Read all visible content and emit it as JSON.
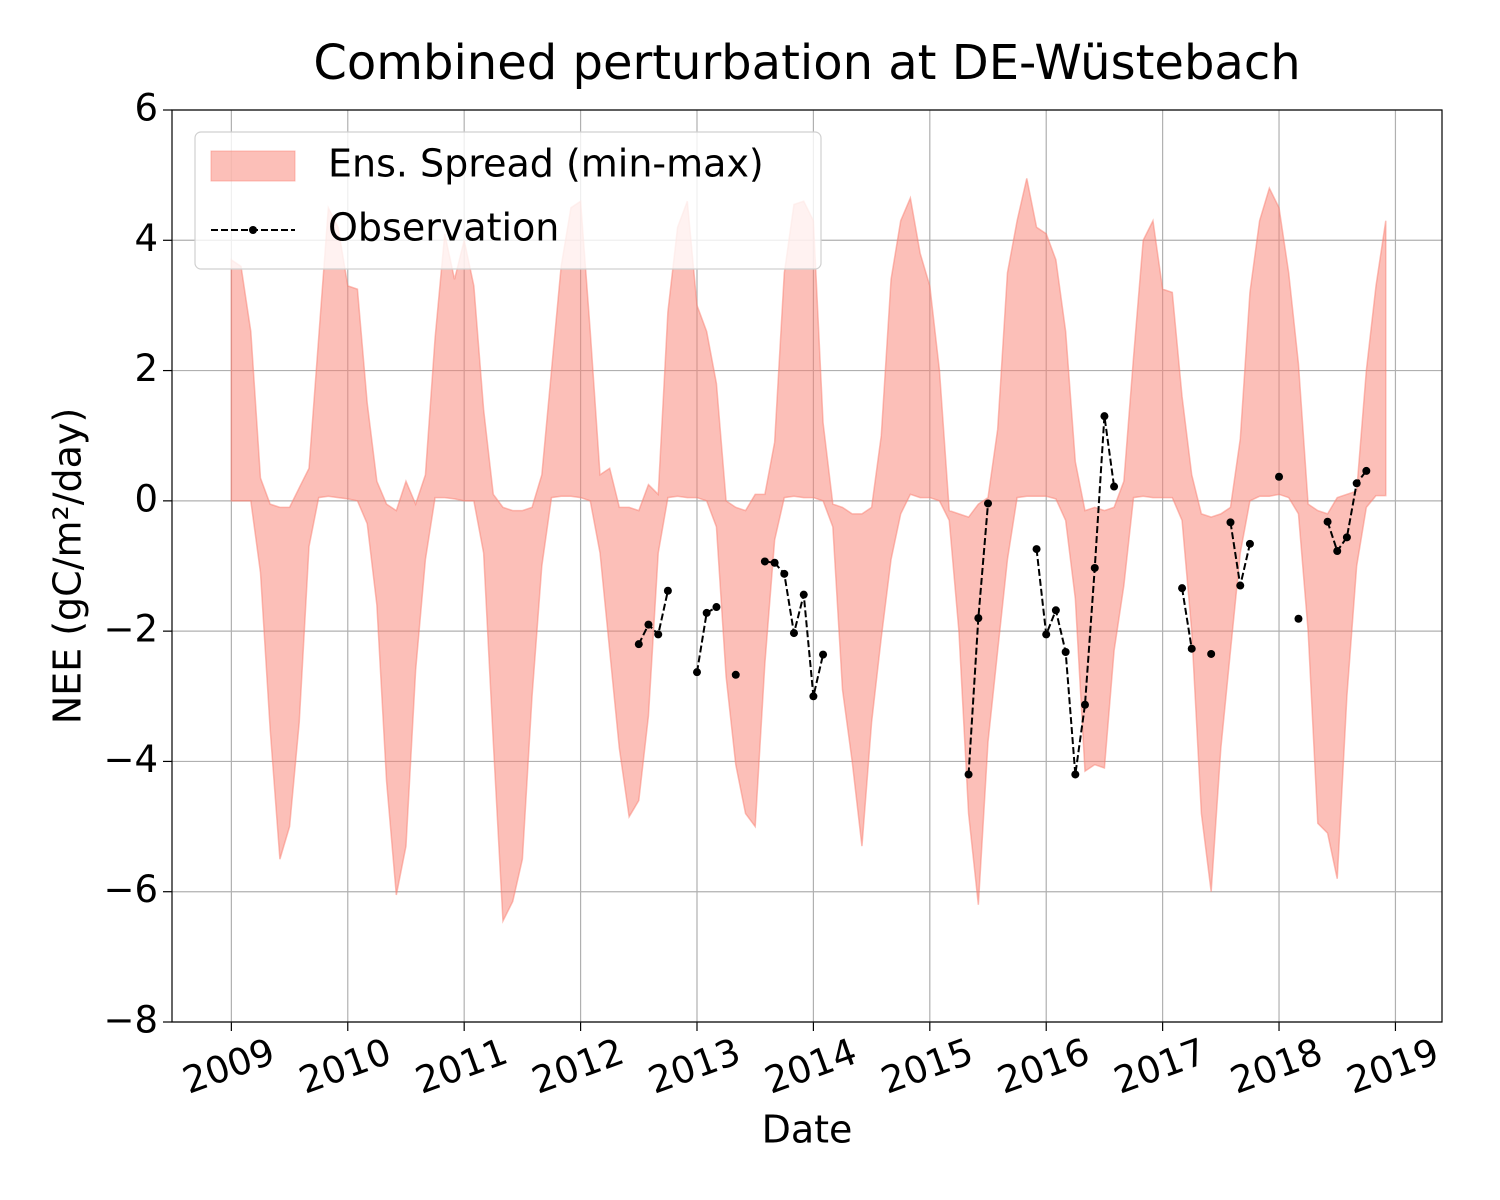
{
  "chart_data": {
    "type": "line",
    "title": "Combined perturbation at DE-Wüstebach",
    "x_label": "Date",
    "y_label": "NEE  (gC/m²/day)",
    "xlim": [
      2008.49,
      2019.4
    ],
    "ylim": [
      -8,
      6
    ],
    "xticks": [
      2009,
      2010,
      2011,
      2012,
      2013,
      2014,
      2015,
      2016,
      2017,
      2018,
      2019
    ],
    "yticks": [
      {
        "value": -8,
        "label": "−8"
      },
      {
        "value": -6,
        "label": "−6"
      },
      {
        "value": -4,
        "label": "−4"
      },
      {
        "value": -2,
        "label": "−2"
      },
      0,
      2,
      4,
      6
    ],
    "grid": true,
    "legend": "upper left",
    "x": [
      2009.0,
      2009.083,
      2009.167,
      2009.25,
      2009.333,
      2009.417,
      2009.5,
      2009.583,
      2009.667,
      2009.75,
      2009.833,
      2009.917,
      2010.0,
      2010.083,
      2010.167,
      2010.25,
      2010.333,
      2010.417,
      2010.5,
      2010.583,
      2010.667,
      2010.75,
      2010.833,
      2010.917,
      2011.0,
      2011.083,
      2011.167,
      2011.25,
      2011.333,
      2011.417,
      2011.5,
      2011.583,
      2011.667,
      2011.75,
      2011.833,
      2011.917,
      2012.0,
      2012.083,
      2012.167,
      2012.25,
      2012.333,
      2012.417,
      2012.5,
      2012.583,
      2012.667,
      2012.75,
      2012.833,
      2012.917,
      2013.0,
      2013.083,
      2013.167,
      2013.25,
      2013.333,
      2013.417,
      2013.5,
      2013.583,
      2013.667,
      2013.75,
      2013.833,
      2013.917,
      2014.0,
      2014.083,
      2014.167,
      2014.25,
      2014.333,
      2014.417,
      2014.5,
      2014.583,
      2014.667,
      2014.75,
      2014.833,
      2014.917,
      2015.0,
      2015.083,
      2015.167,
      2015.25,
      2015.333,
      2015.417,
      2015.5,
      2015.583,
      2015.667,
      2015.75,
      2015.833,
      2015.917,
      2016.0,
      2016.083,
      2016.167,
      2016.25,
      2016.333,
      2016.417,
      2016.5,
      2016.583,
      2016.667,
      2016.75,
      2016.833,
      2016.917,
      2017.0,
      2017.083,
      2017.167,
      2017.25,
      2017.333,
      2017.417,
      2017.5,
      2017.583,
      2017.667,
      2017.75,
      2017.833,
      2017.917,
      2018.0,
      2018.083,
      2018.167,
      2018.25,
      2018.333,
      2018.417,
      2018.5,
      2018.583,
      2018.667,
      2018.75,
      2018.833,
      2018.917
    ],
    "band": {
      "name": "Ens. Spread (min-max)",
      "color": "#fa8072",
      "alpha": 0.5,
      "upper": [
        3.7,
        3.6,
        2.6,
        0.35,
        -0.05,
        -0.1,
        -0.1,
        0.2,
        0.5,
        2.5,
        4.5,
        4.2,
        3.3,
        3.25,
        1.5,
        0.3,
        -0.05,
        -0.15,
        0.3,
        -0.05,
        0.4,
        2.5,
        4.1,
        3.4,
        4.0,
        3.3,
        1.4,
        0.1,
        -0.1,
        -0.15,
        -0.15,
        -0.1,
        0.4,
        2.0,
        3.6,
        4.5,
        4.6,
        2.6,
        0.4,
        0.5,
        -0.1,
        -0.1,
        -0.15,
        0.25,
        0.1,
        2.9,
        4.2,
        4.6,
        3.0,
        2.6,
        1.8,
        0.0,
        -0.1,
        -0.15,
        0.1,
        0.1,
        0.9,
        3.5,
        4.55,
        4.6,
        4.3,
        1.2,
        -0.05,
        -0.1,
        -0.2,
        -0.2,
        -0.1,
        1.0,
        3.4,
        4.3,
        4.65,
        3.8,
        3.3,
        2.0,
        -0.15,
        -0.2,
        -0.25,
        -0.05,
        0.05,
        1.1,
        3.5,
        4.3,
        4.95,
        4.2,
        4.1,
        3.7,
        2.6,
        0.6,
        -0.15,
        -0.1,
        -0.15,
        -0.1,
        0.3,
        2.2,
        4.0,
        4.3,
        3.25,
        3.2,
        1.6,
        0.4,
        -0.2,
        -0.25,
        -0.2,
        -0.1,
        0.95,
        3.2,
        4.3,
        4.8,
        4.5,
        3.5,
        2.1,
        -0.05,
        -0.15,
        -0.2,
        0.05,
        0.1,
        0.15,
        2.0,
        3.3,
        4.3
      ],
      "lower": [
        0.0,
        0.0,
        0.0,
        -1.1,
        -3.5,
        -5.5,
        -5.0,
        -3.4,
        -0.7,
        0.05,
        0.07,
        0.05,
        0.03,
        0.0,
        -0.35,
        -1.6,
        -4.3,
        -6.05,
        -5.3,
        -2.6,
        -0.9,
        0.05,
        0.05,
        0.03,
        0.0,
        0.0,
        -0.8,
        -3.7,
        -6.45,
        -6.15,
        -5.5,
        -3.0,
        -1.0,
        0.05,
        0.07,
        0.07,
        0.05,
        0.0,
        -0.8,
        -2.3,
        -3.8,
        -4.85,
        -4.6,
        -3.3,
        -0.8,
        0.05,
        0.07,
        0.05,
        0.05,
        0.0,
        -0.4,
        -2.7,
        -4.05,
        -4.8,
        -5.0,
        -2.5,
        -0.6,
        0.05,
        0.07,
        0.05,
        0.05,
        0.0,
        -0.4,
        -2.9,
        -4.0,
        -5.3,
        -3.4,
        -2.1,
        -0.9,
        -0.2,
        0.1,
        0.05,
        0.05,
        0.0,
        -0.3,
        -2.0,
        -4.8,
        -6.2,
        -3.7,
        -2.3,
        -0.9,
        0.05,
        0.07,
        0.07,
        0.07,
        0.03,
        -0.3,
        -1.5,
        -4.15,
        -4.05,
        -4.1,
        -2.3,
        -1.3,
        0.05,
        0.07,
        0.05,
        0.05,
        0.05,
        -0.3,
        -2.0,
        -4.8,
        -6.0,
        -3.8,
        -2.3,
        -0.8,
        0.0,
        0.07,
        0.07,
        0.1,
        0.05,
        -0.2,
        -2.0,
        -4.95,
        -5.1,
        -5.8,
        -3.0,
        -1.0,
        -0.1,
        0.08,
        0.08
      ]
    },
    "series": [
      {
        "name": "Observation",
        "color": "#000000",
        "values": [
          null,
          null,
          null,
          null,
          null,
          null,
          null,
          null,
          null,
          null,
          null,
          null,
          null,
          null,
          null,
          null,
          null,
          null,
          null,
          null,
          null,
          null,
          null,
          null,
          null,
          null,
          null,
          null,
          null,
          null,
          null,
          null,
          null,
          null,
          null,
          null,
          null,
          null,
          null,
          null,
          null,
          null,
          -2.2,
          -1.9,
          -2.05,
          -1.38,
          null,
          null,
          -2.63,
          -1.72,
          -1.63,
          null,
          -2.67,
          null,
          null,
          -0.93,
          -0.95,
          -1.12,
          -2.03,
          -1.44,
          -3.0,
          -2.36,
          null,
          null,
          null,
          null,
          null,
          null,
          null,
          null,
          null,
          null,
          null,
          null,
          null,
          null,
          -4.2,
          -1.8,
          -0.04,
          null,
          null,
          null,
          null,
          -0.74,
          -2.05,
          -1.68,
          -2.32,
          -4.2,
          -3.13,
          -1.03,
          1.3,
          0.22,
          null,
          null,
          null,
          null,
          null,
          null,
          -1.34,
          -2.27,
          null,
          -2.35,
          null,
          -0.33,
          -1.3,
          -0.66,
          null,
          null,
          0.37,
          null,
          -1.81,
          null,
          null,
          -0.32,
          -0.77,
          -0.56,
          0.27,
          0.46,
          null,
          null
        ]
      }
    ]
  }
}
